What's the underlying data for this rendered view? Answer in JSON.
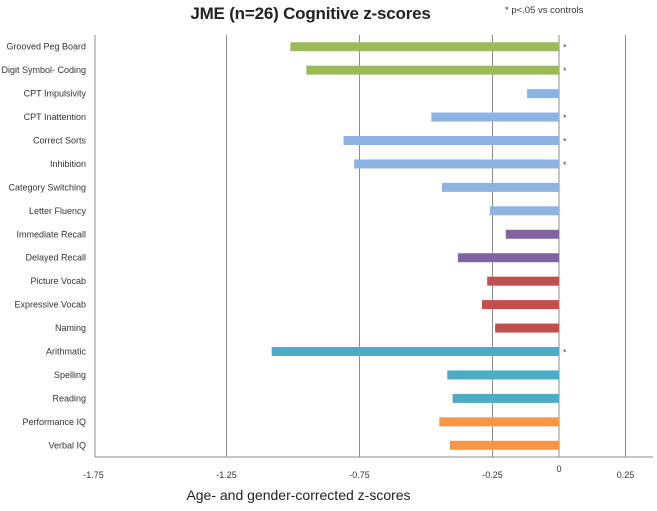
{
  "chart_data": {
    "type": "bar",
    "orientation": "horizontal",
    "title": "JME (n=26) Cognitive z-scores",
    "annotation": "* p<.05 vs controls",
    "xlabel": "Age- and gender-corrected  z-scores",
    "ylabel": "",
    "xlim": [
      -1.75,
      0.32
    ],
    "xticks": [
      -1.75,
      -1.25,
      -0.75,
      -0.25,
      0,
      0.25
    ],
    "xtick_labels": [
      "-1.75",
      "-1.25",
      "-0.75",
      "-0.25",
      "0",
      "0.25"
    ],
    "grid": "vertical",
    "legend": "none",
    "categories": [
      "Grooved Peg Board",
      "Digit Symbol- Coding",
      "CPT Impulsivity",
      "CPT Inattention",
      "Correct Sorts",
      "Inhibition",
      "Category Switching",
      "Letter Fluency",
      "Immediate  Recall",
      "Delayed Recall",
      "Picture Vocab",
      "Expressive Vocab",
      "Naming",
      "Arithmatic",
      "Spelling",
      "Reading",
      "Performance IQ",
      "Verbal IQ"
    ],
    "values": [
      -1.01,
      -0.95,
      -0.12,
      -0.48,
      -0.81,
      -0.77,
      -0.44,
      -0.26,
      -0.2,
      -0.38,
      -0.27,
      -0.29,
      -0.24,
      -1.08,
      -0.42,
      -0.4,
      -0.45,
      -0.41
    ],
    "significant": [
      true,
      true,
      false,
      true,
      true,
      true,
      false,
      false,
      false,
      false,
      false,
      false,
      false,
      true,
      false,
      false,
      false,
      false
    ],
    "colors": [
      "#9BBB59",
      "#9BBB59",
      "#8DB3E2",
      "#8DB3E2",
      "#8DB3E2",
      "#8DB3E2",
      "#8DB3E2",
      "#8DB3E2",
      "#8064A2",
      "#8064A2",
      "#C0504D",
      "#C0504D",
      "#C0504D",
      "#4BACC6",
      "#4BACC6",
      "#4BACC6",
      "#F79646",
      "#F79646"
    ],
    "significance_marker": "*"
  }
}
